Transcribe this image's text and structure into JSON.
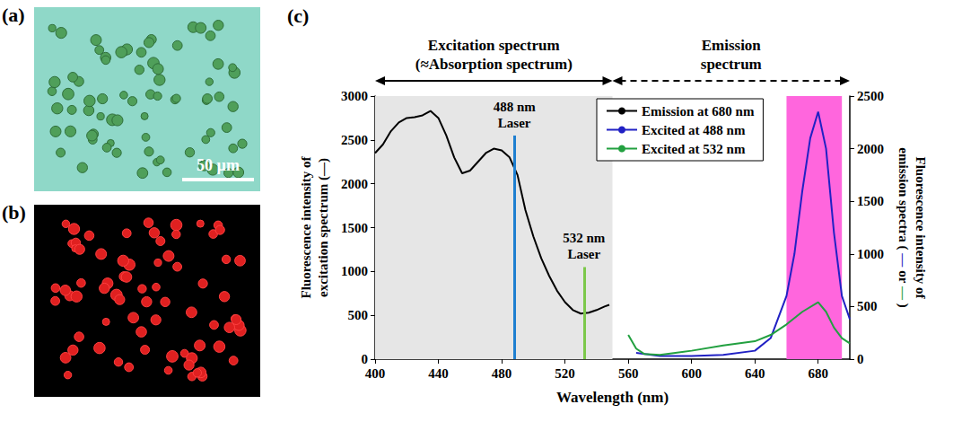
{
  "panels": [
    {
      "label": "(a)",
      "scale_bar": "50 µm"
    },
    {
      "label": "(b)"
    }
  ],
  "chart_data": {
    "type": "line",
    "panel_label": "(c)",
    "x_label": "Wavelength (nm)",
    "y_label": "Fluorescence intensity of excitation spectrum (—)",
    "y2_label": "Fluorescence intensity of emission spectra ( — or — )",
    "xlim": [
      400,
      700
    ],
    "xticks": [
      400,
      440,
      480,
      520,
      560,
      600,
      640,
      680
    ],
    "ylim": [
      0,
      3000
    ],
    "yticks": [
      0,
      500,
      1000,
      1500,
      2000,
      2500,
      3000
    ],
    "y2lim": [
      0,
      2500
    ],
    "y2ticks": [
      0,
      500,
      1000,
      1500,
      2000,
      2500
    ],
    "grid": false,
    "legend": "top",
    "series": [
      {
        "name": "Emission at 680 nm",
        "color": "#000000",
        "x": [
          400,
          405,
          410,
          415,
          420,
          425,
          430,
          435,
          440,
          445,
          450,
          455,
          460,
          465,
          470,
          475,
          480,
          485,
          490,
          495,
          500,
          505,
          510,
          515,
          520,
          525,
          530,
          535,
          540,
          545,
          548
        ],
        "values": [
          2350,
          2450,
          2600,
          2700,
          2750,
          2760,
          2780,
          2830,
          2750,
          2550,
          2300,
          2120,
          2150,
          2250,
          2350,
          2400,
          2380,
          2300,
          2100,
          1700,
          1400,
          1150,
          950,
          780,
          650,
          560,
          520,
          530,
          560,
          600,
          620
        ]
      },
      {
        "name": "Excited at 488 nm",
        "color": "#2121c4",
        "axis": "y2",
        "x": [
          565,
          580,
          600,
          620,
          640,
          650,
          660,
          665,
          670,
          675,
          680,
          685,
          690,
          695,
          700
        ],
        "values": [
          60,
          30,
          30,
          40,
          80,
          200,
          600,
          1000,
          1600,
          2100,
          2350,
          2000,
          1200,
          600,
          380
        ]
      },
      {
        "name": "Excited at 532 nm",
        "color": "#22a040",
        "axis": "y2",
        "x": [
          560,
          565,
          570,
          580,
          600,
          620,
          640,
          650,
          660,
          670,
          680,
          685,
          690,
          695,
          700
        ],
        "values": [
          230,
          100,
          50,
          40,
          80,
          130,
          170,
          230,
          330,
          450,
          540,
          450,
          300,
          200,
          150
        ]
      }
    ],
    "lasers": [
      {
        "x": 488,
        "y_end": 2550,
        "label": "488 nm Laser",
        "color": "#1e7fd0"
      },
      {
        "x": 532,
        "y_end": 1050,
        "label": "532 nm Laser",
        "color": "#7cc84a"
      }
    ],
    "regions": [
      {
        "range": [
          400,
          550
        ],
        "color": "#e6e6e6"
      },
      {
        "range": [
          660,
          695
        ],
        "color": "#ff66dd"
      }
    ],
    "annotations": [
      {
        "lines": [
          "Excitation spectrum",
          "(≈Absorption spectrum)"
        ],
        "range": [
          400,
          550
        ],
        "line_style": "solid"
      },
      {
        "lines": [
          "Emission",
          "spectrum"
        ],
        "range": [
          550,
          700
        ],
        "line_style": "dashed"
      }
    ]
  }
}
